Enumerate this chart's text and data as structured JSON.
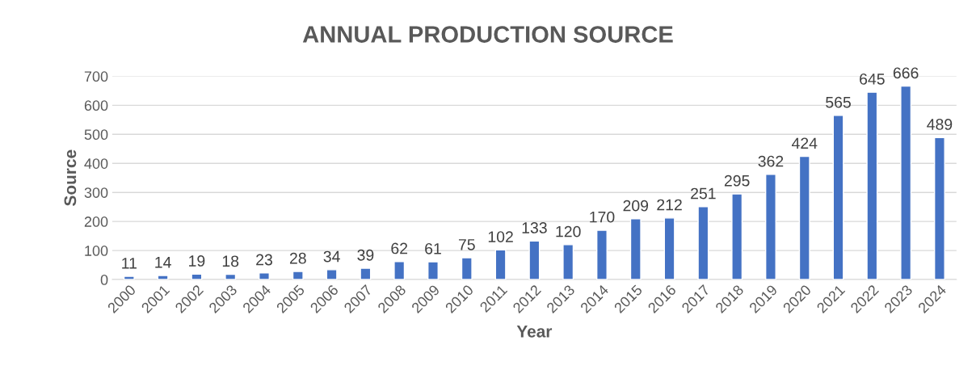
{
  "chart_data": {
    "type": "bar",
    "title": "ANNUAL PRODUCTION SOURCE",
    "xlabel": "Year",
    "ylabel": "Source",
    "categories": [
      "2000",
      "2001",
      "2002",
      "2003",
      "2004",
      "2005",
      "2006",
      "2007",
      "2008",
      "2009",
      "2010",
      "2011",
      "2012",
      "2013",
      "2014",
      "2015",
      "2016",
      "2017",
      "2018",
      "2019",
      "2020",
      "2021",
      "2022",
      "2023",
      "2024"
    ],
    "values": [
      11,
      14,
      19,
      18,
      23,
      28,
      34,
      39,
      62,
      61,
      75,
      102,
      133,
      120,
      170,
      209,
      212,
      251,
      295,
      362,
      424,
      565,
      645,
      666,
      489
    ],
    "color": "#4472c4",
    "ylim": [
      0,
      700
    ],
    "yticks": [
      0,
      100,
      200,
      300,
      400,
      500,
      600,
      700
    ],
    "grid": "y",
    "data_labels": true
  }
}
